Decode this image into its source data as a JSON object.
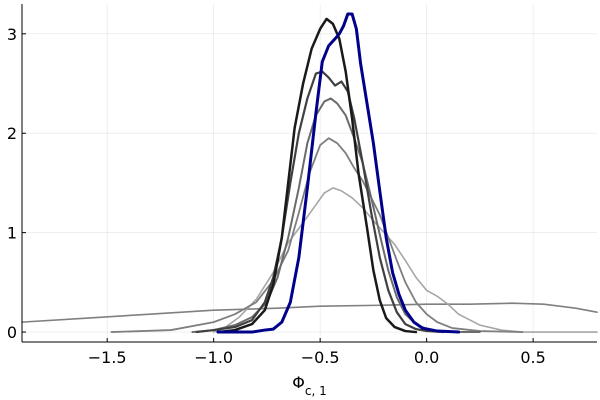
{
  "chart_data": {
    "type": "line",
    "title": "",
    "xlabel_base": "Φ",
    "xlabel_sub": "c, 1",
    "ylabel": "",
    "xlim": [
      -1.9,
      0.8
    ],
    "ylim": [
      -0.1,
      3.3
    ],
    "grid": true,
    "legend": "none",
    "xticks": [
      {
        "value": -1.5,
        "label": "−1.5"
      },
      {
        "value": -1.0,
        "label": "−1.0"
      },
      {
        "value": -0.5,
        "label": "−0.5"
      },
      {
        "value": 0.0,
        "label": "0.0"
      },
      {
        "value": 0.5,
        "label": "0.5"
      }
    ],
    "yticks": [
      {
        "value": 0,
        "label": "0"
      },
      {
        "value": 1,
        "label": "1"
      },
      {
        "value": 2,
        "label": "2"
      },
      {
        "value": 3,
        "label": "3"
      }
    ],
    "series": [
      {
        "color": "#808080",
        "width": 1.6,
        "points": [
          [
            -1.9,
            0.1
          ],
          [
            -1.6,
            0.14
          ],
          [
            -1.3,
            0.18
          ],
          [
            -1.0,
            0.22
          ],
          [
            -0.7,
            0.24
          ],
          [
            -0.5,
            0.26
          ],
          [
            -0.2,
            0.27
          ],
          [
            0.0,
            0.28
          ],
          [
            0.2,
            0.28
          ],
          [
            0.4,
            0.29
          ],
          [
            0.55,
            0.28
          ],
          [
            0.7,
            0.24
          ],
          [
            0.8,
            0.2
          ]
        ]
      },
      {
        "color": "#a6a6a6",
        "width": 1.6,
        "points": [
          [
            -1.0,
            0.0
          ],
          [
            -0.95,
            0.04
          ],
          [
            -0.88,
            0.15
          ],
          [
            -0.8,
            0.33
          ],
          [
            -0.72,
            0.6
          ],
          [
            -0.65,
            0.9
          ],
          [
            -0.58,
            1.1
          ],
          [
            -0.52,
            1.28
          ],
          [
            -0.48,
            1.4
          ],
          [
            -0.44,
            1.45
          ],
          [
            -0.4,
            1.42
          ],
          [
            -0.35,
            1.35
          ],
          [
            -0.3,
            1.25
          ],
          [
            -0.25,
            1.12
          ],
          [
            -0.2,
            1.0
          ],
          [
            -0.15,
            0.88
          ],
          [
            -0.1,
            0.72
          ],
          [
            -0.05,
            0.55
          ],
          [
            0.0,
            0.42
          ],
          [
            0.05,
            0.36
          ],
          [
            0.1,
            0.28
          ],
          [
            0.15,
            0.18
          ],
          [
            0.25,
            0.07
          ],
          [
            0.35,
            0.02
          ],
          [
            0.45,
            0.0
          ],
          [
            0.6,
            0.0
          ],
          [
            0.8,
            0.0
          ]
        ]
      },
      {
        "color": "#7f7f7f",
        "width": 1.8,
        "points": [
          [
            -1.48,
            0.0
          ],
          [
            -1.2,
            0.02
          ],
          [
            -1.0,
            0.1
          ],
          [
            -0.9,
            0.18
          ],
          [
            -0.8,
            0.3
          ],
          [
            -0.72,
            0.52
          ],
          [
            -0.65,
            0.82
          ],
          [
            -0.6,
            1.2
          ],
          [
            -0.55,
            1.6
          ],
          [
            -0.5,
            1.88
          ],
          [
            -0.46,
            1.95
          ],
          [
            -0.42,
            1.9
          ],
          [
            -0.38,
            1.8
          ],
          [
            -0.34,
            1.65
          ],
          [
            -0.3,
            1.52
          ],
          [
            -0.26,
            1.35
          ],
          [
            -0.22,
            1.18
          ],
          [
            -0.18,
            0.95
          ],
          [
            -0.14,
            0.72
          ],
          [
            -0.1,
            0.5
          ],
          [
            -0.05,
            0.3
          ],
          [
            0.0,
            0.18
          ],
          [
            0.05,
            0.1
          ],
          [
            0.12,
            0.04
          ],
          [
            0.25,
            0.01
          ],
          [
            0.45,
            0.0
          ]
        ]
      },
      {
        "color": "#6b6b6b",
        "width": 2.0,
        "points": [
          [
            -1.1,
            0.0
          ],
          [
            -1.0,
            0.02
          ],
          [
            -0.9,
            0.07
          ],
          [
            -0.82,
            0.15
          ],
          [
            -0.75,
            0.3
          ],
          [
            -0.7,
            0.55
          ],
          [
            -0.65,
            0.95
          ],
          [
            -0.6,
            1.45
          ],
          [
            -0.56,
            1.9
          ],
          [
            -0.52,
            2.18
          ],
          [
            -0.48,
            2.32
          ],
          [
            -0.45,
            2.35
          ],
          [
            -0.42,
            2.3
          ],
          [
            -0.38,
            2.18
          ],
          [
            -0.34,
            1.95
          ],
          [
            -0.3,
            1.7
          ],
          [
            -0.26,
            1.35
          ],
          [
            -0.22,
            0.98
          ],
          [
            -0.18,
            0.62
          ],
          [
            -0.14,
            0.35
          ],
          [
            -0.1,
            0.18
          ],
          [
            -0.05,
            0.08
          ],
          [
            0.0,
            0.03
          ],
          [
            0.05,
            0.01
          ],
          [
            0.12,
            0.0
          ],
          [
            0.25,
            0.0
          ]
        ]
      },
      {
        "color": "#404040",
        "width": 2.2,
        "points": [
          [
            -1.08,
            0.0
          ],
          [
            -1.0,
            0.02
          ],
          [
            -0.9,
            0.05
          ],
          [
            -0.82,
            0.12
          ],
          [
            -0.76,
            0.3
          ],
          [
            -0.72,
            0.55
          ],
          [
            -0.68,
            0.95
          ],
          [
            -0.64,
            1.5
          ],
          [
            -0.6,
            2.0
          ],
          [
            -0.56,
            2.35
          ],
          [
            -0.52,
            2.6
          ],
          [
            -0.49,
            2.62
          ],
          [
            -0.46,
            2.56
          ],
          [
            -0.43,
            2.48
          ],
          [
            -0.4,
            2.52
          ],
          [
            -0.37,
            2.42
          ],
          [
            -0.34,
            2.15
          ],
          [
            -0.3,
            1.7
          ],
          [
            -0.26,
            1.2
          ],
          [
            -0.22,
            0.75
          ],
          [
            -0.18,
            0.42
          ],
          [
            -0.14,
            0.2
          ],
          [
            -0.1,
            0.08
          ],
          [
            -0.05,
            0.03
          ],
          [
            0.0,
            0.01
          ],
          [
            0.08,
            0.0
          ]
        ]
      },
      {
        "color": "#1a1a1a",
        "width": 2.5,
        "points": [
          [
            -0.98,
            0.0
          ],
          [
            -0.9,
            0.02
          ],
          [
            -0.82,
            0.08
          ],
          [
            -0.76,
            0.22
          ],
          [
            -0.72,
            0.48
          ],
          [
            -0.68,
            0.95
          ],
          [
            -0.65,
            1.5
          ],
          [
            -0.62,
            2.05
          ],
          [
            -0.58,
            2.5
          ],
          [
            -0.54,
            2.85
          ],
          [
            -0.5,
            3.05
          ],
          [
            -0.47,
            3.15
          ],
          [
            -0.44,
            3.1
          ],
          [
            -0.41,
            2.95
          ],
          [
            -0.38,
            2.62
          ],
          [
            -0.35,
            2.15
          ],
          [
            -0.32,
            1.6
          ],
          [
            -0.28,
            1.05
          ],
          [
            -0.25,
            0.62
          ],
          [
            -0.22,
            0.32
          ],
          [
            -0.19,
            0.14
          ],
          [
            -0.15,
            0.05
          ],
          [
            -0.1,
            0.01
          ],
          [
            -0.05,
            0.0
          ]
        ]
      },
      {
        "color": "#00008b",
        "width": 3.0,
        "points": [
          [
            -0.98,
            0.0
          ],
          [
            -0.9,
            0.0
          ],
          [
            -0.82,
            0.0
          ],
          [
            -0.76,
            0.02
          ],
          [
            -0.72,
            0.03
          ],
          [
            -0.68,
            0.1
          ],
          [
            -0.64,
            0.3
          ],
          [
            -0.6,
            0.75
          ],
          [
            -0.56,
            1.45
          ],
          [
            -0.52,
            2.2
          ],
          [
            -0.49,
            2.72
          ],
          [
            -0.46,
            2.88
          ],
          [
            -0.43,
            2.95
          ],
          [
            -0.41,
            3.0
          ],
          [
            -0.39,
            3.08
          ],
          [
            -0.37,
            3.2
          ],
          [
            -0.35,
            3.2
          ],
          [
            -0.33,
            3.05
          ],
          [
            -0.31,
            2.7
          ],
          [
            -0.28,
            2.3
          ],
          [
            -0.25,
            1.9
          ],
          [
            -0.22,
            1.42
          ],
          [
            -0.19,
            0.95
          ],
          [
            -0.16,
            0.6
          ],
          [
            -0.13,
            0.38
          ],
          [
            -0.1,
            0.22
          ],
          [
            -0.06,
            0.1
          ],
          [
            -0.02,
            0.04
          ],
          [
            0.05,
            0.01
          ],
          [
            0.15,
            0.0
          ]
        ]
      }
    ]
  }
}
